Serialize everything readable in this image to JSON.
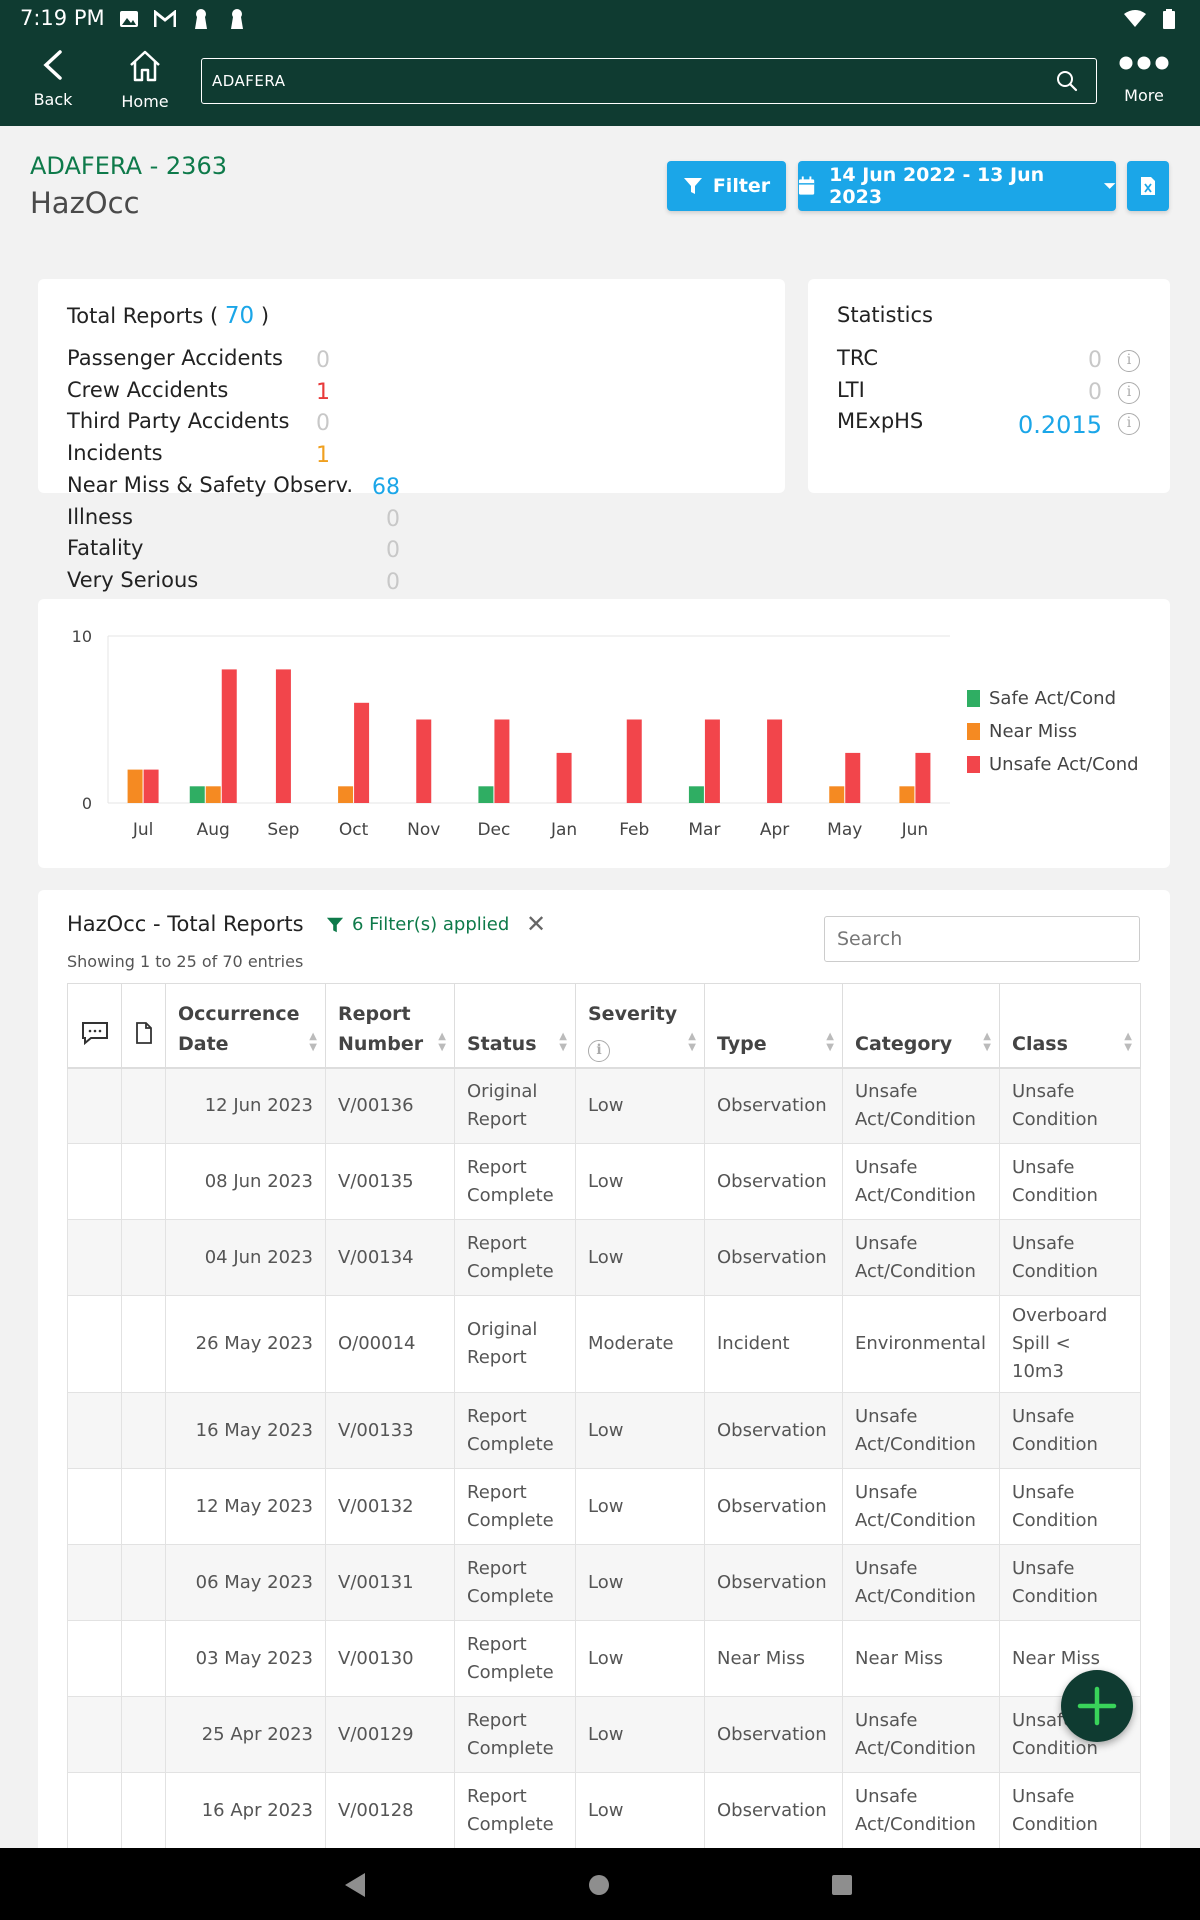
{
  "status_bar": {
    "time": "7:19 PM"
  },
  "appbar": {
    "back_label": "Back",
    "home_label": "Home",
    "search_value": "ADAFERA",
    "more_label": "More"
  },
  "header": {
    "vessel": "ADAFERA - 2363",
    "module": "HazOcc",
    "filter_label": "Filter",
    "date_range": "14 Jun 2022 - 13 Jun 2023"
  },
  "total_reports": {
    "title": "Total Reports (",
    "count": "70",
    "close": ")",
    "rows": [
      {
        "label": "Passenger Accidents",
        "value": "0",
        "color": "#c8c8c8"
      },
      {
        "label": "Crew Accidents",
        "value": "1",
        "color": "#e83a3a"
      },
      {
        "label": "Third Party Accidents",
        "value": "0",
        "color": "#c8c8c8"
      },
      {
        "label": "Incidents",
        "value": "1",
        "color": "#f0a020"
      },
      {
        "label": "Near Miss & Safety Observ.",
        "value": "68",
        "color": "#1ba6e8"
      },
      {
        "label": "Illness",
        "value": "0",
        "color": "#c8c8c8"
      },
      {
        "label": "Fatality",
        "value": "0",
        "color": "#c8c8c8"
      },
      {
        "label": "Very Serious",
        "value": "0",
        "color": "#c8c8c8"
      }
    ]
  },
  "statistics": {
    "title": "Statistics",
    "rows": [
      {
        "label": "TRC",
        "value": "0",
        "color": "#c8c8c8"
      },
      {
        "label": "LTI",
        "value": "0",
        "color": "#c8c8c8"
      },
      {
        "label": "MExpHS",
        "value": "0.2015",
        "color": "#1ba6e8"
      }
    ]
  },
  "chart_data": {
    "type": "bar",
    "categories": [
      "Jul",
      "Aug",
      "Sep",
      "Oct",
      "Nov",
      "Dec",
      "Jan",
      "Feb",
      "Mar",
      "Apr",
      "May",
      "Jun"
    ],
    "series": [
      {
        "name": "Safe Act/Cond",
        "color": "#2fae63",
        "values": [
          0,
          1,
          0,
          0,
          0,
          1,
          0,
          0,
          1,
          0,
          0,
          0
        ]
      },
      {
        "name": "Near Miss",
        "color": "#f58a22",
        "values": [
          2,
          1,
          0,
          1,
          0,
          0,
          0,
          0,
          0,
          0,
          1,
          1
        ]
      },
      {
        "name": "Unsafe Act/Cond",
        "color": "#f2454b",
        "values": [
          2,
          8,
          8,
          6,
          5,
          5,
          3,
          5,
          5,
          5,
          3,
          3
        ]
      }
    ],
    "ylim": [
      0,
      10
    ],
    "yticks": [
      "0",
      "10"
    ],
    "legend": "right",
    "grid": false
  },
  "table": {
    "title": "HazOcc - Total Reports",
    "filters_applied": "6 Filter(s) applied",
    "showing": "Showing 1 to 25 of 70 entries",
    "search_placeholder": "Search",
    "columns": {
      "occurrence_date": "Occurrence Date",
      "report_number": "Report Number",
      "status": "Status",
      "severity": "Severity",
      "type": "Type",
      "category": "Category",
      "class": "Class"
    },
    "rows": [
      {
        "date": "12 Jun 2023",
        "number": "V/00136",
        "status": "Original Report",
        "status_kind": "orig",
        "severity": "Low",
        "type": "Observation",
        "category": "Unsafe Act/Condition",
        "class": "Unsafe Condition"
      },
      {
        "date": "08 Jun 2023",
        "number": "V/00135",
        "status": "Report Complete",
        "status_kind": "comp",
        "severity": "Low",
        "type": "Observation",
        "category": "Unsafe Act/Condition",
        "class": "Unsafe Condition"
      },
      {
        "date": "04 Jun 2023",
        "number": "V/00134",
        "status": "Report Complete",
        "status_kind": "comp",
        "severity": "Low",
        "type": "Observation",
        "category": "Unsafe Act/Condition",
        "class": "Unsafe Condition"
      },
      {
        "date": "26 May 2023",
        "number": "O/00014",
        "status": "Original Report",
        "status_kind": "orig",
        "severity": "Moderate",
        "type": "Incident",
        "category": "Environmental",
        "class": "Overboard Spill < 10m3"
      },
      {
        "date": "16 May 2023",
        "number": "V/00133",
        "status": "Report Complete",
        "status_kind": "comp",
        "severity": "Low",
        "type": "Observation",
        "category": "Unsafe Act/Condition",
        "class": "Unsafe Condition"
      },
      {
        "date": "12 May 2023",
        "number": "V/00132",
        "status": "Report Complete",
        "status_kind": "comp",
        "severity": "Low",
        "type": "Observation",
        "category": "Unsafe Act/Condition",
        "class": "Unsafe Condition"
      },
      {
        "date": "06 May 2023",
        "number": "V/00131",
        "status": "Report Complete",
        "status_kind": "comp",
        "severity": "Low",
        "type": "Observation",
        "category": "Unsafe Act/Condition",
        "class": "Unsafe Condition"
      },
      {
        "date": "03 May 2023",
        "number": "V/00130",
        "status": "Report Complete",
        "status_kind": "comp",
        "severity": "Low",
        "type": "Near Miss",
        "category": "Near Miss",
        "class": "Near Miss"
      },
      {
        "date": "25 Apr 2023",
        "number": "V/00129",
        "status": "Report Complete",
        "status_kind": "comp",
        "severity": "Low",
        "type": "Observation",
        "category": "Unsafe Act/Condition",
        "class": "Unsafe Condition"
      },
      {
        "date": "16 Apr 2023",
        "number": "V/00128",
        "status": "Report Complete",
        "status_kind": "comp",
        "severity": "Low",
        "type": "Observation",
        "category": "Unsafe Act/Condition",
        "class": "Unsafe Condition"
      }
    ]
  }
}
